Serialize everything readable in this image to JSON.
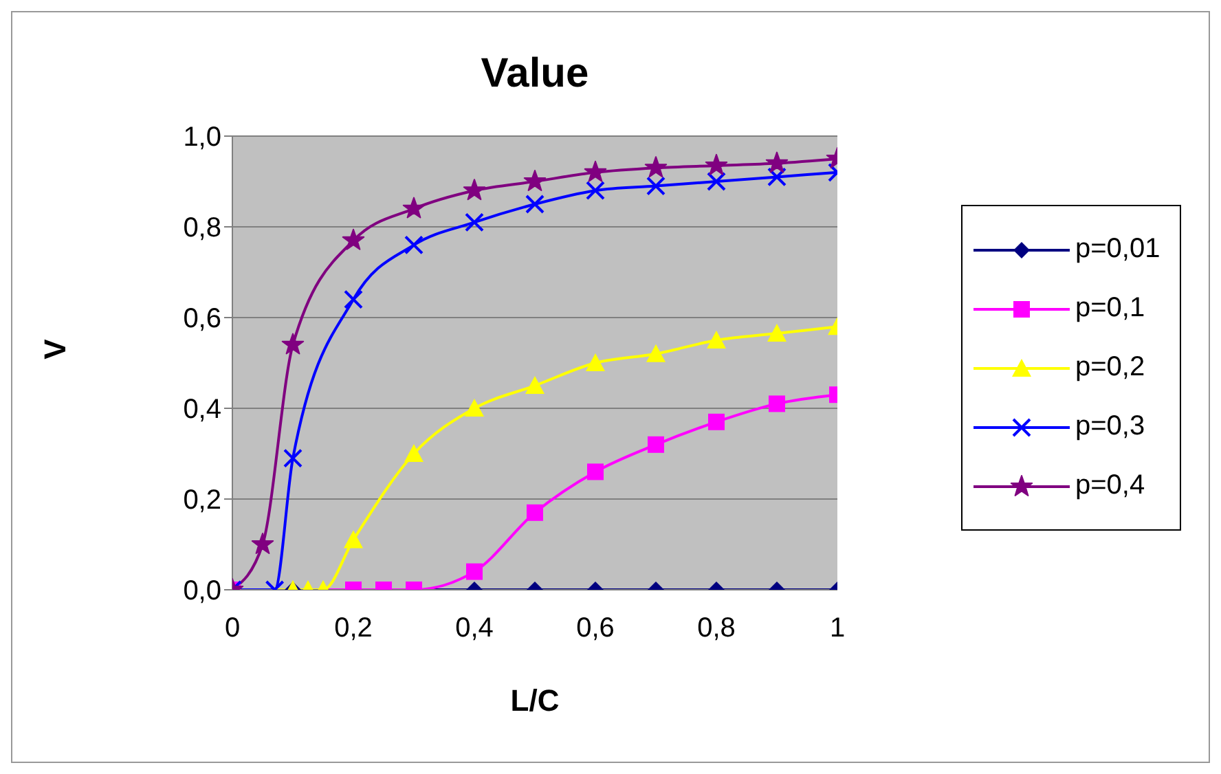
{
  "chart_data": {
    "type": "line",
    "title": "Value",
    "xlabel": "L/C",
    "ylabel": "V",
    "xlim": [
      0,
      1
    ],
    "ylim": [
      0,
      1
    ],
    "xticks": [
      0,
      {
        "value": 0.2,
        "label": "0,2"
      },
      {
        "value": 0.4,
        "label": "0,4"
      },
      {
        "value": 0.6,
        "label": "0,6"
      },
      {
        "value": 0.8,
        "label": "0,8"
      },
      1
    ],
    "yticks": [
      {
        "value": 0,
        "label": "0,0"
      },
      {
        "value": 0.2,
        "label": "0,2"
      },
      {
        "value": 0.4,
        "label": "0,4"
      },
      {
        "value": 0.6,
        "label": "0,6"
      },
      {
        "value": 0.8,
        "label": "0,8"
      },
      {
        "value": 1,
        "label": "1,0"
      }
    ],
    "grid": "y",
    "legend": "right",
    "series": [
      {
        "name": "p=0,01",
        "color": "#000080",
        "marker": "diamond",
        "x": [
          0,
          0.1,
          0.2,
          0.3,
          0.4,
          0.5,
          0.6,
          0.7,
          0.8,
          0.9,
          1
        ],
        "values": [
          0,
          0,
          0,
          0,
          0,
          0,
          0,
          0,
          0,
          0,
          0
        ]
      },
      {
        "name": "p=0,1",
        "color": "#ff00ff",
        "marker": "square",
        "x": [
          0,
          0.2,
          0.25,
          0.3,
          0.4,
          0.5,
          0.6,
          0.7,
          0.8,
          0.9,
          1
        ],
        "values": [
          0,
          0,
          0,
          0,
          0.04,
          0.17,
          0.26,
          0.32,
          0.37,
          0.41,
          0.43
        ]
      },
      {
        "name": "p=0,2",
        "color": "#ffff00",
        "marker": "triangle",
        "x": [
          0,
          0.1,
          0.125,
          0.15,
          0.2,
          0.3,
          0.4,
          0.5,
          0.6,
          0.7,
          0.8,
          0.9,
          1
        ],
        "values": [
          0,
          0,
          0,
          0,
          0.11,
          0.3,
          0.4,
          0.45,
          0.5,
          0.52,
          0.55,
          0.565,
          0.58
        ]
      },
      {
        "name": "p=0,3",
        "color": "#0000ff",
        "marker": "cross",
        "x": [
          0,
          0.07,
          0.1,
          0.2,
          0.3,
          0.4,
          0.5,
          0.6,
          0.7,
          0.8,
          0.9,
          1
        ],
        "values": [
          0,
          0,
          0.29,
          0.64,
          0.76,
          0.81,
          0.85,
          0.88,
          0.89,
          0.9,
          0.91,
          0.92
        ]
      },
      {
        "name": "p=0,4",
        "color": "#800080",
        "marker": "star",
        "x": [
          0,
          0.05,
          0.1,
          0.2,
          0.3,
          0.4,
          0.5,
          0.6,
          0.7,
          0.8,
          0.9,
          1
        ],
        "values": [
          0,
          0.1,
          0.54,
          0.77,
          0.84,
          0.88,
          0.9,
          0.92,
          0.93,
          0.935,
          0.94,
          0.95
        ]
      }
    ]
  }
}
